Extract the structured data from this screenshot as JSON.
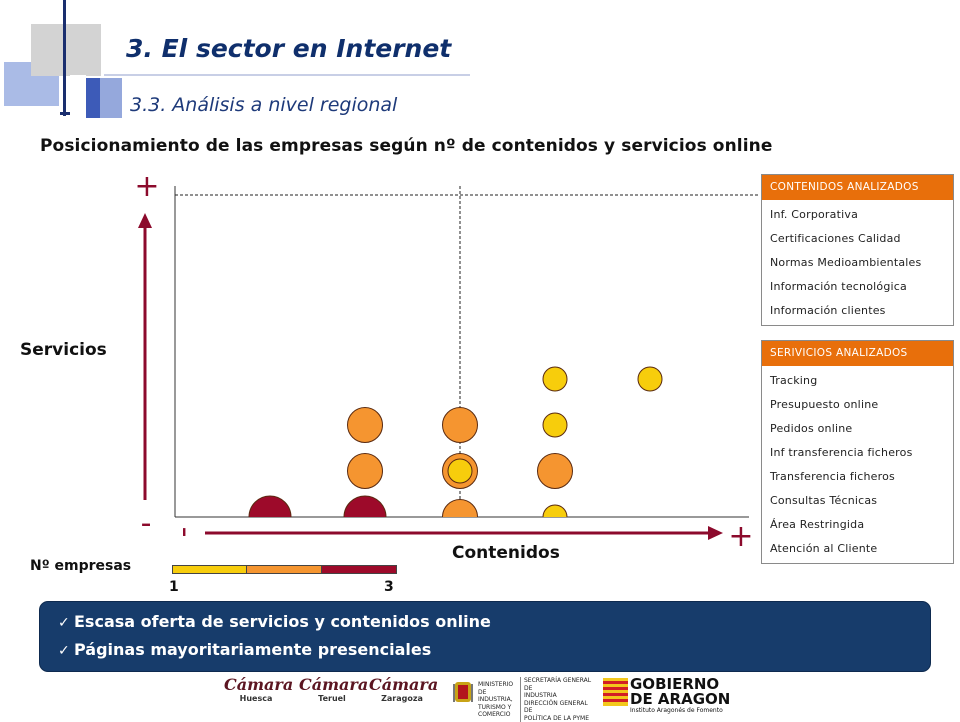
{
  "header": {
    "title": "3. El sector en Internet",
    "subtitle": "3.3. Análisis a nivel regional"
  },
  "chart_data": {
    "type": "scatter",
    "title": "Posicionamiento de las empresas según nº de contenidos y servicios online",
    "xlabel": "Contenidos",
    "ylabel": "Servicios",
    "axis_marks": {
      "y_high": "+",
      "y_low": "-",
      "x_low": "-",
      "x_high": "+"
    },
    "xlim": [
      0,
      6
    ],
    "ylim": [
      0,
      8
    ],
    "reference_lines": {
      "x": 3,
      "y": 7
    },
    "size_legend": {
      "title": "Nº empresas",
      "min": "1",
      "max": "3"
    },
    "colors": {
      "1": "#f7cd0c",
      "2": "#f59530",
      "3": "#9d0a2a"
    },
    "points": [
      {
        "x": 1,
        "y": 0,
        "n": 3
      },
      {
        "x": 2,
        "y": 0,
        "n": 3
      },
      {
        "x": 2,
        "y": 1,
        "n": 2
      },
      {
        "x": 2,
        "y": 2,
        "n": 2
      },
      {
        "x": 3,
        "y": 0,
        "n": 2
      },
      {
        "x": 3,
        "y": 1,
        "n": 2
      },
      {
        "x": 3,
        "y": 1,
        "n": 1
      },
      {
        "x": 3,
        "y": 2,
        "n": 2
      },
      {
        "x": 4,
        "y": 0,
        "n": 1
      },
      {
        "x": 4,
        "y": 1,
        "n": 2
      },
      {
        "x": 4,
        "y": 2,
        "n": 1
      },
      {
        "x": 4,
        "y": 3,
        "n": 1
      },
      {
        "x": 5,
        "y": 3,
        "n": 1
      }
    ]
  },
  "contenidos": {
    "header": "CONTENIDOS ANALIZADOS",
    "items": [
      "Inf. Corporativa",
      "Certificaciones Calidad",
      "Normas Medioambientales",
      "Información tecnológica",
      "Información clientes"
    ]
  },
  "servicios": {
    "header": "SERIVICIOS ANALIZADOS",
    "items": [
      "Tracking",
      "Presupuesto online",
      "Pedidos online",
      "Inf transferencia ficheros",
      "Transferencia ficheros",
      "Consultas Técnicas",
      "Área Restringida",
      "Atención al Cliente"
    ]
  },
  "conclusions": [
    "Escasa oferta de servicios y contenidos online",
    "Páginas mayoritariamente presenciales"
  ],
  "logos": {
    "camara": "Cámara",
    "huesca": "Huesca",
    "teruel": "Teruel",
    "zaragoza": "Zaragoza",
    "ministerio": [
      "MINISTERIO",
      "DE INDUSTRIA,",
      "TURISMO Y",
      "COMERCIO"
    ],
    "secretaria": [
      "SECRETARÍA GENERAL DE",
      "INDUSTRIA",
      "DIRECCIÓN GENERAL DE",
      "POLÍTICA DE LA PYME"
    ],
    "gobierno": [
      "GOBIERNO",
      "DE ARAGON"
    ],
    "iaf": "Instituto Aragonés de Fomento"
  }
}
